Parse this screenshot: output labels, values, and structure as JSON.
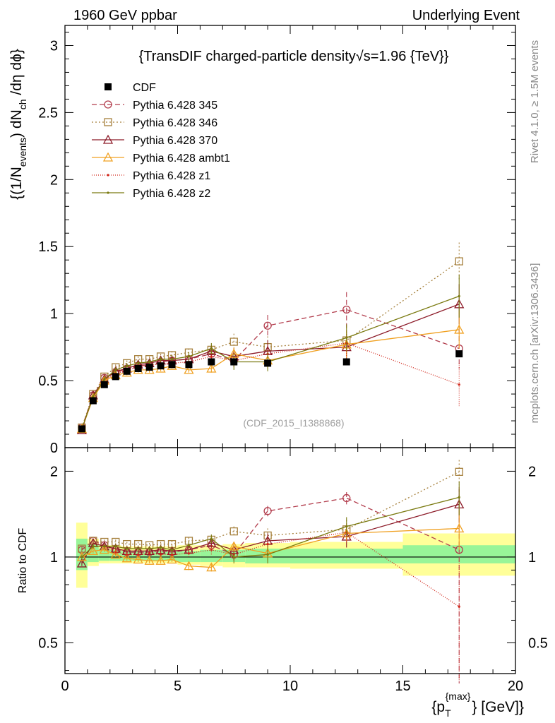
{
  "header": {
    "left": "1960 GeV ppbar",
    "right": "Underlying Event"
  },
  "side": {
    "top": "Rivet 4.1.0, ≥ 1.5M events",
    "bottom": "mcplots.cern.ch [arXiv:1306.3436]"
  },
  "chart_data": {
    "type": "line",
    "title": "{TransDIF charged-particle density√s=1.96 {TeV}}",
    "analysis_tag": "(CDF_2015_I1388868)",
    "xlabel": "{p_T^{max}} [GeV]",
    "xlabel_parts": {
      "open": "{p",
      "sub": "T",
      "sup": "{max}",
      "close": "} [GeV]}"
    },
    "ylabel": "{(1/N_events) dN_ch /dη dϕ}",
    "ylabel_parts": {
      "a": "{(1/N",
      "sub1": "events",
      "b": ") dN",
      "sub2": "ch",
      "c": " /dη dϕ}"
    },
    "ratio_ylabel": "Ratio to CDF",
    "xlim": [
      0,
      20
    ],
    "ylim": [
      0,
      3.15
    ],
    "ratio_ylim": [
      0.39,
      2.42
    ],
    "x_ticks": [
      "0",
      "5",
      "10",
      "15",
      "20"
    ],
    "y_ticks": [
      "0",
      "0.5",
      "1",
      "1.5",
      "2",
      "2.5",
      "3"
    ],
    "ratio_ticks": [
      "0.5",
      "1",
      "2"
    ],
    "x": [
      0.75,
      1.25,
      1.75,
      2.25,
      2.75,
      3.25,
      3.75,
      4.25,
      4.75,
      5.5,
      6.5,
      7.5,
      9.0,
      12.5,
      17.5
    ],
    "data": {
      "name": "CDF",
      "values": [
        0.14,
        0.35,
        0.47,
        0.53,
        0.57,
        0.59,
        0.6,
        0.61,
        0.62,
        0.62,
        0.64,
        0.64,
        0.63,
        0.64,
        0.7
      ],
      "band_edges": [
        0.5,
        1.0,
        1.5,
        2.0,
        2.5,
        3.0,
        3.5,
        4.0,
        4.5,
        5.0,
        6.0,
        7.0,
        8.0,
        10.0,
        15.0,
        20.0
      ],
      "band_stat": [
        [
          0.9,
          1.16
        ],
        [
          0.96,
          1.11
        ],
        [
          0.97,
          1.07
        ],
        [
          0.97,
          1.06
        ],
        [
          0.97,
          1.05
        ],
        [
          0.97,
          1.05
        ],
        [
          0.97,
          1.05
        ],
        [
          0.97,
          1.05
        ],
        [
          0.97,
          1.05
        ],
        [
          0.96,
          1.05
        ],
        [
          0.96,
          1.06
        ],
        [
          0.96,
          1.06
        ],
        [
          0.95,
          1.07
        ],
        [
          0.95,
          1.07
        ],
        [
          0.95,
          1.1
        ]
      ],
      "band_syst": [
        [
          0.78,
          1.32
        ],
        [
          0.93,
          1.16
        ],
        [
          0.95,
          1.1
        ],
        [
          0.95,
          1.1
        ],
        [
          0.95,
          1.09
        ],
        [
          0.95,
          1.09
        ],
        [
          0.95,
          1.09
        ],
        [
          0.95,
          1.09
        ],
        [
          0.95,
          1.09
        ],
        [
          0.94,
          1.1
        ],
        [
          0.93,
          1.1
        ],
        [
          0.92,
          1.11
        ],
        [
          0.92,
          1.12
        ],
        [
          0.91,
          1.13
        ],
        [
          0.86,
          1.21
        ]
      ]
    },
    "series": [
      {
        "name": "Pythia 6.428 345",
        "color": "#b23c4c",
        "dash": "7,4",
        "marker": "circle",
        "values": [
          0.15,
          0.39,
          0.52,
          0.56,
          0.59,
          0.61,
          0.62,
          0.64,
          0.65,
          0.66,
          0.7,
          0.65,
          0.91,
          1.03,
          0.74
        ],
        "errors": [
          0.01,
          0.02,
          0.02,
          0.02,
          0.02,
          0.02,
          0.02,
          0.03,
          0.03,
          0.03,
          0.05,
          0.05,
          0.08,
          0.13,
          0.15
        ]
      },
      {
        "name": "Pythia 6.428 346",
        "color": "#a6803c",
        "dash": "2,3",
        "marker": "square",
        "values": [
          0.15,
          0.4,
          0.53,
          0.6,
          0.63,
          0.66,
          0.66,
          0.68,
          0.69,
          0.71,
          0.73,
          0.79,
          0.75,
          0.8,
          1.39
        ],
        "errors": [
          0.01,
          0.02,
          0.02,
          0.02,
          0.02,
          0.02,
          0.02,
          0.02,
          0.03,
          0.03,
          0.04,
          0.06,
          0.08,
          0.1,
          0.14
        ]
      },
      {
        "name": "Pythia 6.428 370",
        "color": "#8c1a28",
        "dash": "",
        "marker": "triangle",
        "values": [
          0.13,
          0.39,
          0.51,
          0.57,
          0.59,
          0.62,
          0.63,
          0.65,
          0.65,
          0.66,
          0.72,
          0.68,
          0.72,
          0.75,
          1.07
        ],
        "errors": [
          0.01,
          0.02,
          0.02,
          0.02,
          0.02,
          0.02,
          0.02,
          0.02,
          0.03,
          0.03,
          0.04,
          0.06,
          0.08,
          0.1,
          0.15
        ]
      },
      {
        "name": "Pythia 6.428 ambt1",
        "color": "#f0a020",
        "dash": "",
        "marker": "triangle",
        "values": [
          0.14,
          0.37,
          0.5,
          0.54,
          0.56,
          0.58,
          0.58,
          0.59,
          0.61,
          0.58,
          0.59,
          0.7,
          0.65,
          0.77,
          0.88
        ],
        "errors": [
          0.01,
          0.02,
          0.02,
          0.02,
          0.02,
          0.02,
          0.02,
          0.02,
          0.02,
          0.02,
          0.03,
          0.05,
          0.06,
          0.1,
          0.14
        ]
      },
      {
        "name": "Pythia 6.428 z1",
        "color": "#d02418",
        "dash": "1,2",
        "marker": "dot",
        "values": [
          0.14,
          0.38,
          0.51,
          0.55,
          0.58,
          0.6,
          0.62,
          0.62,
          0.63,
          0.64,
          0.68,
          0.65,
          0.7,
          0.78,
          0.47
        ],
        "errors": [
          0.01,
          0.02,
          0.02,
          0.02,
          0.02,
          0.02,
          0.02,
          0.02,
          0.03,
          0.03,
          0.04,
          0.05,
          0.07,
          0.1,
          0.16
        ]
      },
      {
        "name": "Pythia 6.428 z2",
        "color": "#7a7a10",
        "dash": "",
        "marker": "dot",
        "values": [
          0.14,
          0.38,
          0.51,
          0.58,
          0.61,
          0.63,
          0.64,
          0.66,
          0.66,
          0.68,
          0.74,
          0.64,
          0.64,
          0.82,
          1.13
        ],
        "errors": [
          0.01,
          0.02,
          0.02,
          0.02,
          0.02,
          0.02,
          0.02,
          0.02,
          0.03,
          0.03,
          0.04,
          0.06,
          0.07,
          0.1,
          0.16
        ]
      }
    ],
    "ratio_series": [
      {
        "name": "Pythia 6.428 345",
        "values": [
          1.06,
          1.14,
          1.1,
          1.06,
          1.04,
          1.04,
          1.04,
          1.05,
          1.04,
          1.06,
          1.1,
          1.02,
          1.45,
          1.61,
          1.06
        ],
        "errors": [
          0.02,
          0.02,
          0.02,
          0.02,
          0.02,
          0.02,
          0.02,
          0.02,
          0.03,
          0.04,
          0.04,
          0.05,
          0.06,
          0.08,
          0.7
        ]
      },
      {
        "name": "Pythia 6.428 346",
        "values": [
          1.07,
          1.14,
          1.13,
          1.13,
          1.11,
          1.11,
          1.1,
          1.11,
          1.11,
          1.14,
          1.15,
          1.23,
          1.19,
          1.25,
          1.99
        ],
        "errors": [
          0.02,
          0.02,
          0.02,
          0.02,
          0.02,
          0.02,
          0.02,
          0.02,
          0.03,
          0.03,
          0.04,
          0.05,
          0.07,
          0.1,
          0.2
        ]
      },
      {
        "name": "Pythia 6.428 370",
        "values": [
          0.95,
          1.12,
          1.09,
          1.07,
          1.05,
          1.05,
          1.05,
          1.06,
          1.05,
          1.06,
          1.12,
          1.06,
          1.14,
          1.18,
          1.53
        ],
        "errors": [
          0.02,
          0.02,
          0.02,
          0.02,
          0.02,
          0.02,
          0.02,
          0.02,
          0.03,
          0.03,
          0.04,
          0.05,
          0.07,
          0.1,
          0.2
        ]
      },
      {
        "name": "Pythia 6.428 ambt1",
        "values": [
          1.0,
          1.05,
          1.06,
          1.02,
          0.99,
          0.98,
          0.97,
          0.97,
          0.98,
          0.93,
          0.92,
          1.09,
          1.03,
          1.21,
          1.26
        ],
        "errors": [
          0.02,
          0.02,
          0.02,
          0.02,
          0.02,
          0.02,
          0.02,
          0.02,
          0.02,
          0.03,
          0.03,
          0.04,
          0.06,
          0.08,
          0.2
        ]
      },
      {
        "name": "Pythia 6.428 z1",
        "values": [
          1.0,
          1.09,
          1.09,
          1.04,
          1.02,
          1.02,
          1.03,
          1.02,
          1.02,
          1.03,
          1.06,
          1.02,
          1.11,
          1.22,
          0.67
        ],
        "errors": [
          0.02,
          0.02,
          0.02,
          0.02,
          0.02,
          0.02,
          0.02,
          0.02,
          0.03,
          0.03,
          0.04,
          0.05,
          0.06,
          0.09,
          0.3
        ]
      },
      {
        "name": "Pythia 6.428 z2",
        "values": [
          1.0,
          1.09,
          1.09,
          1.09,
          1.07,
          1.07,
          1.07,
          1.08,
          1.06,
          1.1,
          1.16,
          1.0,
          1.02,
          1.28,
          1.62
        ],
        "errors": [
          0.02,
          0.02,
          0.02,
          0.02,
          0.02,
          0.02,
          0.02,
          0.02,
          0.03,
          0.03,
          0.04,
          0.05,
          0.07,
          0.1,
          0.22
        ]
      }
    ]
  }
}
